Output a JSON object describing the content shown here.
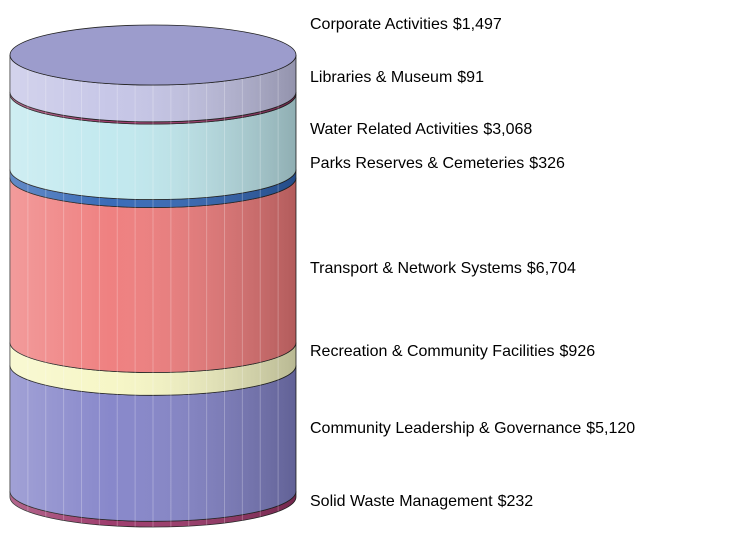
{
  "chart_data": {
    "type": "cylinder",
    "categories": [
      "Solid Waste Management",
      "Community Leadership & Governance",
      "Recreation & Community Facilities",
      "Transport & Network Systems",
      "Parks Reserves & Cemeteries",
      "Water Related Activities",
      "Libraries & Museum",
      "Corporate Activities"
    ],
    "values": [
      232,
      5120,
      926,
      6704,
      326,
      3068,
      91,
      1497
    ],
    "value_labels": [
      "$232",
      "$5,120",
      "$926",
      "$6,704",
      "$326",
      "$3,068",
      "$91",
      "$1,497"
    ],
    "colors": [
      "#993366",
      "#8282c8",
      "#f6f6c4",
      "#ee7a7a",
      "#2f64b4",
      "#bfe8ee",
      "#993366",
      "#c4c4e6"
    ],
    "top_color": "#9c9ccc"
  }
}
